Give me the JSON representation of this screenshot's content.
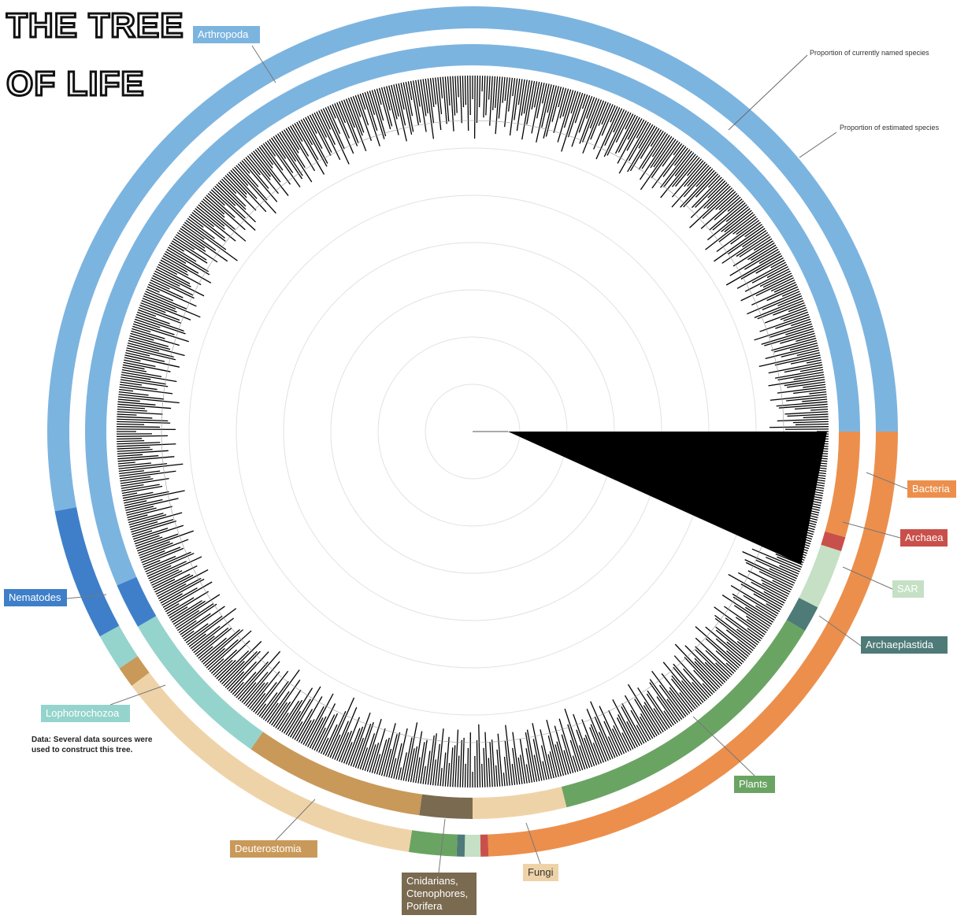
{
  "title": {
    "line1": "THE TREE",
    "line2": "OF LIFE"
  },
  "annotations": {
    "named": "Proportion of currently named species",
    "estimated": "Proportion of estimated species"
  },
  "note": "Data: Several data sources were used to construct this tree.",
  "groups": [
    {
      "label": "Bacteria",
      "color": "#ec8f4c",
      "named_share": 4.4,
      "estimated_share": 24.4
    },
    {
      "label": "Archaea",
      "color": "#c9504a",
      "named_share": 0.6,
      "estimated_share": 0.3
    },
    {
      "label": "SAR",
      "color": "#c5e0c4",
      "named_share": 2.5,
      "estimated_share": 0.6
    },
    {
      "label": "Archaeplastida",
      "color": "#4e7a78",
      "named_share": 1.1,
      "estimated_share": 0.3
    },
    {
      "label": "Plants",
      "color": "#6aa463",
      "named_share": 12.5,
      "estimated_share": 1.8
    },
    {
      "label": "Fungi",
      "color": "#efd3a8",
      "named_share": 3.9,
      "estimated_share": 12.4
    },
    {
      "label": "Cnidarians, Ctenophores, Porifera",
      "color": "#7a6a50",
      "named_share": 2.2,
      "estimated_share": 0
    },
    {
      "label": "Deuterostomia",
      "color": "#c9995a",
      "named_share": 7.5,
      "estimated_share": 0.8
    },
    {
      "label": "Lophotrochozoa",
      "color": "#94d4cc",
      "named_share": 6.9,
      "estimated_share": 1.4
    },
    {
      "label": "Nematodes",
      "color": "#3f7fc9",
      "named_share": 1.9,
      "estimated_share": 5
    },
    {
      "label": "Arthropoda",
      "color": "#7cb4e0",
      "named_share": 56.5,
      "estimated_share": 53
    }
  ]
}
